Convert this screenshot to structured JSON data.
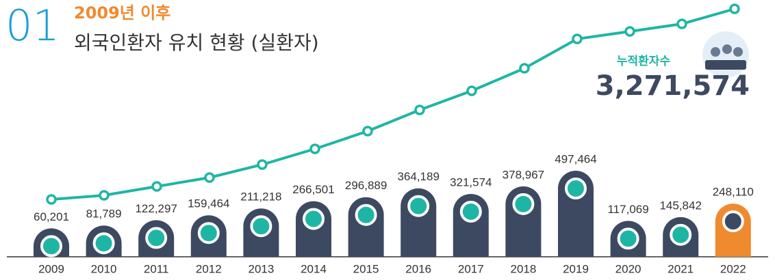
{
  "header": {
    "number": "01",
    "subtitle": "2009년 이후",
    "title": "외국인환자 유치 현황 (실환자)"
  },
  "total": {
    "label": "누적환자수",
    "value": "3,271,574"
  },
  "chart_data": {
    "type": "bar",
    "categories": [
      "2009",
      "2010",
      "2011",
      "2012",
      "2013",
      "2014",
      "2015",
      "2016",
      "2017",
      "2018",
      "2019",
      "2020",
      "2021",
      "2022"
    ],
    "values": [
      60201,
      81789,
      122297,
      159464,
      211218,
      266501,
      296889,
      364189,
      321574,
      378967,
      497464,
      117069,
      145842,
      248110
    ],
    "value_labels": [
      "60,201",
      "81,789",
      "122,297",
      "159,464",
      "211,218",
      "266,501",
      "296,889",
      "364,189",
      "321,574",
      "378,967",
      "497,464",
      "117,069",
      "145,842",
      "248,110"
    ],
    "colors": [
      "#3d4960",
      "#3d4960",
      "#3d4960",
      "#3d4960",
      "#3d4960",
      "#3d4960",
      "#3d4960",
      "#3d4960",
      "#3d4960",
      "#3d4960",
      "#3d4960",
      "#3d4960",
      "#3d4960",
      "#f08a2e"
    ]
  }
}
